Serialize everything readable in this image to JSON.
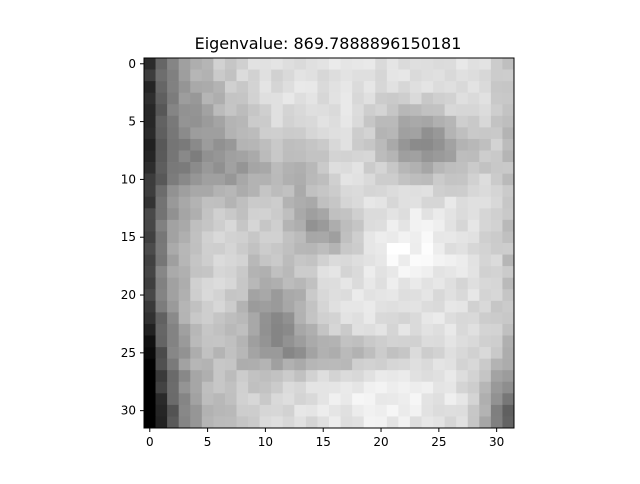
{
  "chart_data": {
    "type": "heatmap",
    "title": "Eigenvalue: 869.7888896150181",
    "xlabel": "",
    "ylabel": "",
    "colormap": "gray",
    "origin": "upper",
    "rows": 32,
    "cols": 32,
    "xlim": [
      -0.5,
      31.5
    ],
    "ylim": [
      31.5,
      -0.5
    ],
    "x_ticks": [
      0,
      5,
      10,
      15,
      20,
      25,
      30
    ],
    "y_ticks": [
      0,
      5,
      10,
      15,
      20,
      25,
      30
    ],
    "grid": false,
    "colors": {
      "background": "#ffffff",
      "axis": "#000000"
    }
  }
}
